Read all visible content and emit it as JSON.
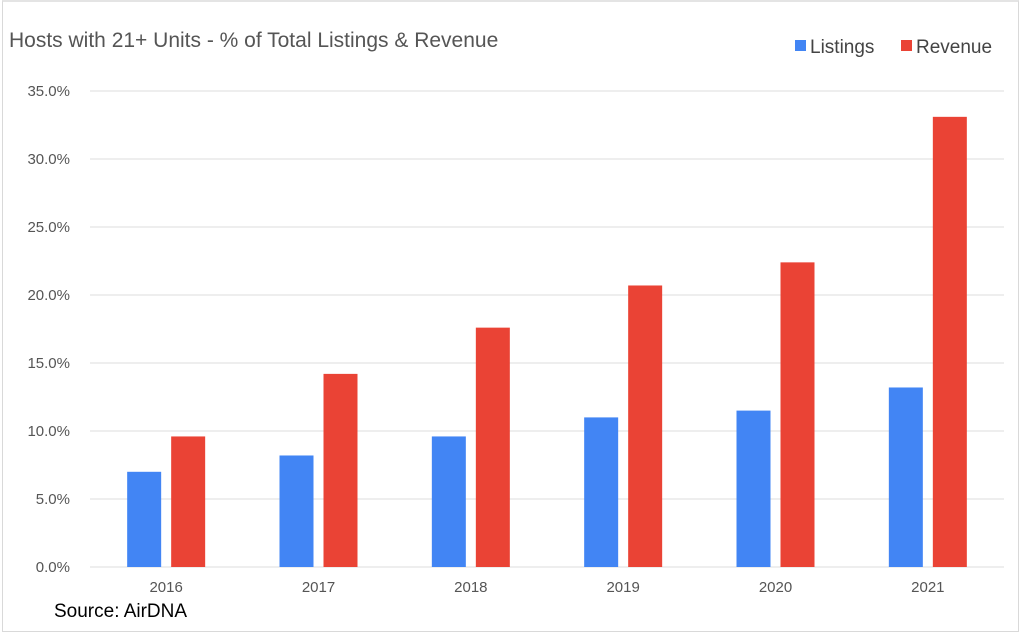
{
  "chart_data": {
    "type": "bar",
    "title": "Hosts with 21+ Units - % of Total Listings & Revenue",
    "xlabel": "",
    "ylabel": "",
    "categories": [
      "2016",
      "2017",
      "2018",
      "2019",
      "2020",
      "2021"
    ],
    "series": [
      {
        "name": "Listings",
        "color": "#4285f4",
        "values": [
          7.0,
          8.2,
          9.6,
          11.0,
          11.5,
          13.2
        ]
      },
      {
        "name": "Revenue",
        "color": "#ea4335",
        "values": [
          9.6,
          14.2,
          17.6,
          20.7,
          22.4,
          33.1
        ]
      }
    ],
    "ylim": [
      0,
      35
    ],
    "yticks": [
      0,
      5,
      10,
      15,
      20,
      25,
      30,
      35
    ],
    "ytick_labels": [
      "0.0%",
      "5.0%",
      "10.0%",
      "15.0%",
      "20.0%",
      "25.0%",
      "30.0%",
      "35.0%"
    ],
    "grid": true,
    "legend_position": "top-right",
    "annotation": "Source: AirDNA"
  }
}
